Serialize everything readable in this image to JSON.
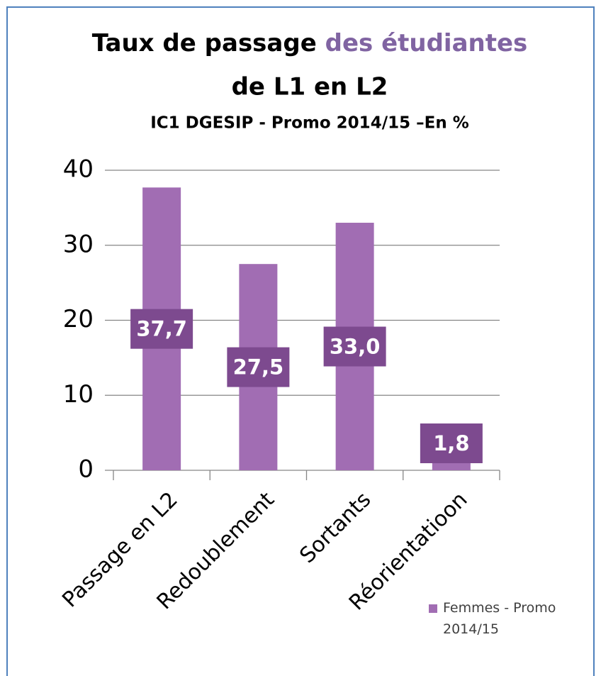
{
  "chart_data": {
    "type": "bar",
    "title_parts": [
      "Taux de passage",
      "des étudiantes",
      "de L1 en L2"
    ],
    "subtitle": "IC1 DGESIP - Promo 2014/15 –En %",
    "categories": [
      "Passage en L2",
      "Redoublement",
      "Sortants",
      "Réorientatioon"
    ],
    "series": [
      {
        "name": "Femmes - Promo 2014/15",
        "color": "#a16db3",
        "values": [
          37.7,
          27.5,
          33.0,
          1.8
        ],
        "value_labels": [
          "37,7",
          "27,5",
          "33,0",
          "1,8"
        ]
      }
    ],
    "ylim": [
      0,
      40
    ],
    "yticks": [
      0,
      10,
      20,
      30,
      40
    ],
    "grid": true
  }
}
